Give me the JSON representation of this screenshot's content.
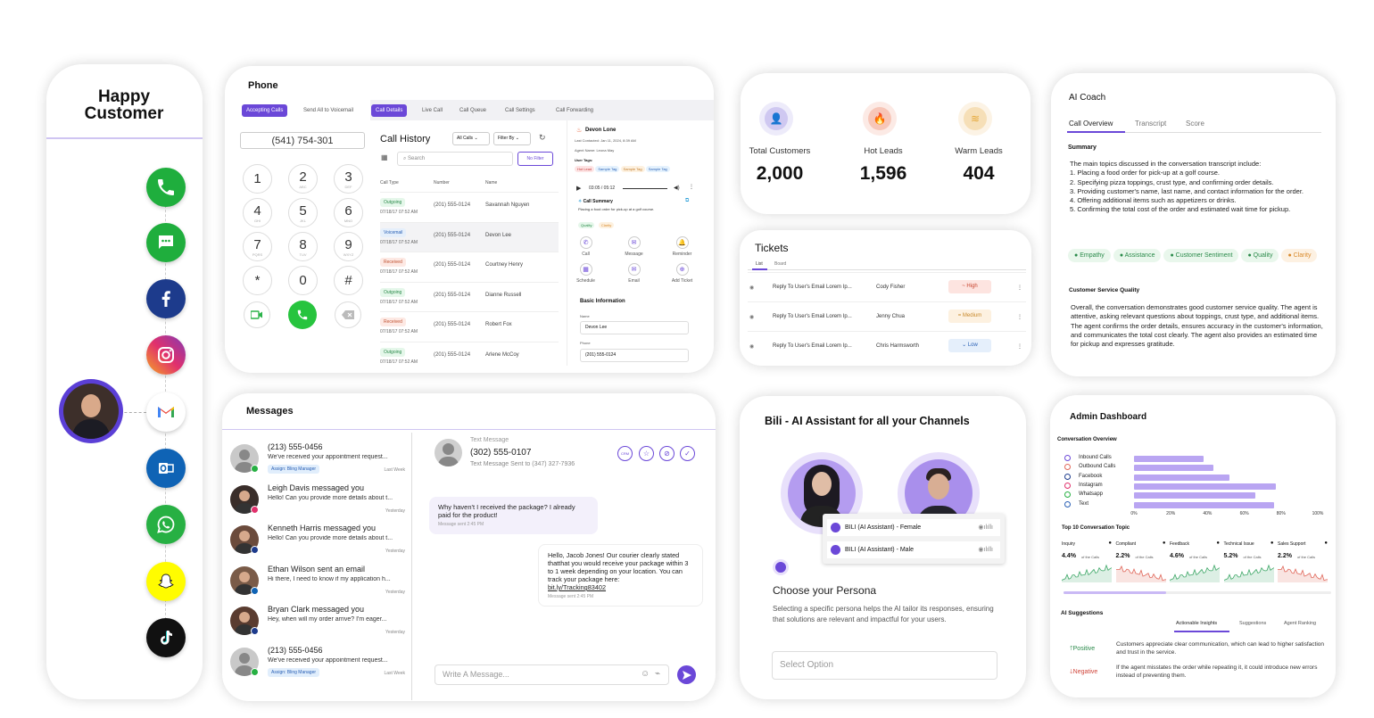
{
  "happy": {
    "title": "Happy Customer",
    "channels": [
      "phone-icon",
      "sms-icon",
      "facebook-icon",
      "instagram-icon",
      "gmail-icon",
      "outlook-icon",
      "whatsapp-icon",
      "snapchat-icon",
      "tiktok-icon"
    ]
  },
  "phone": {
    "title": "Phone",
    "top_tabs": [
      "Accepting Calls",
      "Send All to Voicemail",
      "Call Details",
      "Live Call",
      "Call Queue",
      "Call Settings",
      "Call Forwarding"
    ],
    "dialed": "(541) 754-301",
    "keys": [
      {
        "d": "1",
        "l": ""
      },
      {
        "d": "2",
        "l": "ABC"
      },
      {
        "d": "3",
        "l": "DEF"
      },
      {
        "d": "4",
        "l": "GHI"
      },
      {
        "d": "5",
        "l": "JKL"
      },
      {
        "d": "6",
        "l": "MNO"
      },
      {
        "d": "7",
        "l": "PQRS"
      },
      {
        "d": "8",
        "l": "TUV"
      },
      {
        "d": "9",
        "l": "WXYZ"
      },
      {
        "d": "*",
        "l": ""
      },
      {
        "d": "0",
        "l": ""
      },
      {
        "d": "#",
        "l": ""
      }
    ],
    "history": {
      "title": "Call History",
      "filter_all": "All Calls",
      "filter_by": "Filter By",
      "search_placeholder": "Search",
      "no_filter": "No Filter",
      "col_type": "Call Type",
      "col_number": "Number",
      "col_name": "Name",
      "rows": [
        {
          "type": "Outgoing",
          "date": "07/18/17 07:52 AM",
          "number": "(201) 555-0124",
          "name": "Savannah Nguyen"
        },
        {
          "type": "Voicemail",
          "date": "07/18/17 07:52 AM",
          "number": "(201) 555-0124",
          "name": "Devon Lee"
        },
        {
          "type": "Received",
          "date": "07/18/17 07:52 AM",
          "number": "(201) 555-0124",
          "name": "Courtney Henry"
        },
        {
          "type": "Outgoing",
          "date": "07/18/17 07:52 AM",
          "number": "(201) 555-0124",
          "name": "Dianne Russell"
        },
        {
          "type": "Received",
          "date": "07/18/17 07:52 AM",
          "number": "(201) 555-0124",
          "name": "Robert Fox"
        },
        {
          "type": "Outgoing",
          "date": "07/18/17 07:52 AM",
          "number": "(201) 555-0124",
          "name": "Arlene McCoy"
        }
      ]
    },
    "detail": {
      "name": "Devon Lone",
      "last_contacted": "Last Contacted: Jan 11, 2024, 8:39 AM",
      "agent": "Agent Name: Leona May",
      "user_tags": "User Tags:",
      "tags": [
        "Hot Lead",
        "Sample Tag",
        "Sample Tag",
        "Sample Tag"
      ],
      "audio_time": "03:05 / 05:12",
      "summary_title": "Call Summary",
      "summary": "Placing a food order for pick-up at a golf course.",
      "summary_tags": [
        "Quality",
        "Clarity"
      ],
      "actions": [
        "Call",
        "Message",
        "Reminder",
        "Schedule",
        "Email",
        "Add Ticket"
      ],
      "basic_title": "Basic Information",
      "name_label": "Name",
      "name_value": "Devon Lee",
      "phone_label": "Phone",
      "phone_value": "(201) 555-0124"
    }
  },
  "messages": {
    "title": "Messages",
    "list": [
      {
        "title": "(213) 555-0456",
        "preview": "We've received your appointment request...",
        "tag": "Assign: Bling Manager",
        "time": "Last Week"
      },
      {
        "title": "Leigh Davis messaged you",
        "preview": "Hello! Can you provide more details about t...",
        "tag": "",
        "time": "Yesterday"
      },
      {
        "title": "Kenneth Harris messaged you",
        "preview": "Hello! Can you provide more details about t...",
        "tag": "",
        "time": "Yesterday"
      },
      {
        "title": "Ethan Wilson sent an email",
        "preview": "Hi there, I need to know if my application h...",
        "tag": "",
        "time": "Yesterday"
      },
      {
        "title": "Bryan Clark messaged you",
        "preview": "Hey, when will my order arrive? I'm eager...",
        "tag": "",
        "time": "Yesterday"
      },
      {
        "title": "(213) 555-0456",
        "preview": "We've received your appointment request...",
        "tag": "Assign: Bling Manager",
        "time": "Last Week"
      }
    ],
    "chat": {
      "label": "Text Message",
      "number": "(302) 555-0107",
      "sent_to": "Text Message Sent to (347) 327-7936",
      "in_text": "Why haven't I received the package? I already paid for the product!",
      "in_time": "Message sent 2:45 PM",
      "out_text": "Hello, Jacob Jones! Our courier clearly stated thatthat you would receive your package within 3 to 1 week depending on your location. You can track your package here:",
      "out_link": "bit.ly/Tracking83402",
      "out_time": "Message sent 2:45 PM",
      "input_placeholder": "Write A Message..."
    }
  },
  "stats": [
    {
      "label": "Total Customers",
      "value": "2,000",
      "color": "#7b68d9"
    },
    {
      "label": "Hot Leads",
      "value": "1,596",
      "color": "#e8643c"
    },
    {
      "label": "Warm Leads",
      "value": "404",
      "color": "#e5a83a"
    }
  ],
  "tickets": {
    "title": "Tickets",
    "tabs": [
      "List",
      "Board"
    ],
    "rows": [
      {
        "subject": "Reply To User's Email Lorem Ip...",
        "person": "Cody Fisher",
        "priority": "High"
      },
      {
        "subject": "Reply To User's Email Lorem Ip...",
        "person": "Jenny Chua",
        "priority": "Medium"
      },
      {
        "subject": "Reply To User's Email Lorem Ip...",
        "person": "Chris Harmsworth",
        "priority": "Low"
      }
    ]
  },
  "bili": {
    "title": "Bili - AI Assistant for all your Channels",
    "options": [
      "BILI (AI Assistant) - Female",
      "BILI (AI Assistant) - Male"
    ],
    "heading": "Choose your Persona",
    "desc": "Selecting a specific persona helps the AI tailor its responses, ensuring that solutions are relevant and impactful for your users.",
    "select_placeholder": "Select Option"
  },
  "coach": {
    "title": "AI Coach",
    "tabs": [
      "Call Overview",
      "Transcript",
      "Score"
    ],
    "summary_title": "Summary",
    "summary_lines": [
      "The main topics discussed in the conversation transcript include:",
      "1. Placing a food order for pick-up at a golf course.",
      "2. Specifying pizza toppings, crust type, and confirming order details.",
      "3. Providing customer's name, last name, and contact information for the order.",
      "4. Offering additional items such as appetizers or drinks.",
      "5. Confirming the total cost of the order and estimated wait time for pickup."
    ],
    "tags": [
      "Empathy",
      "Assistance",
      "Customer Sentiment",
      "Quality"
    ],
    "tag_orange": "Clarity",
    "quality_title": "Customer Service Quality",
    "quality_text": "Overall, the conversation demonstrates good customer service quality. The agent is attentive, asking relevant questions about toppings, crust type, and additional items. The agent confirms the order details, ensures accuracy in the customer's information, and communicates the total cost clearly. The agent also provides an estimated time for pickup and expresses gratitude."
  },
  "admin": {
    "title": "Admin Dashboard",
    "overview_title": "Conversation Overview",
    "chart_data": {
      "type": "bar",
      "categories": [
        "Inbound Calls",
        "Outbound Calls",
        "Facebook",
        "Instagram",
        "Whatsapp",
        "Text"
      ],
      "values": [
        38,
        43,
        52,
        77,
        66,
        76
      ],
      "xticks": [
        "0%",
        "20%",
        "40%",
        "60%",
        "80%",
        "100%"
      ],
      "xlim": [
        0,
        100
      ]
    },
    "topics_title": "Top 10 Conversation Topic",
    "topics": [
      {
        "name": "Inquiry",
        "pct": "4.4%",
        "color": "#3fa868"
      },
      {
        "name": "Compliant",
        "pct": "2.2%",
        "color": "#e0675a"
      },
      {
        "name": "Feedback",
        "pct": "4.6%",
        "color": "#3fa868"
      },
      {
        "name": "Technical Issue",
        "pct": "5.2%",
        "color": "#3fa868"
      },
      {
        "name": "Sales Support",
        "pct": "2.2%",
        "color": "#e0675a"
      }
    ],
    "of_calls": "of the Calls",
    "suggest_title": "AI Suggestions",
    "suggest_tabs": [
      "Actionable Insights",
      "Suggestions",
      "Agent Ranking"
    ],
    "positive": "Positive",
    "positive_text": "Customers appreciate clear communication, which can lead to higher satisfaction and trust in the service.",
    "negative": "Negative",
    "negative_text": "If the agent misstates the order while repeating it, it could introduce new errors instead of preventing them."
  }
}
